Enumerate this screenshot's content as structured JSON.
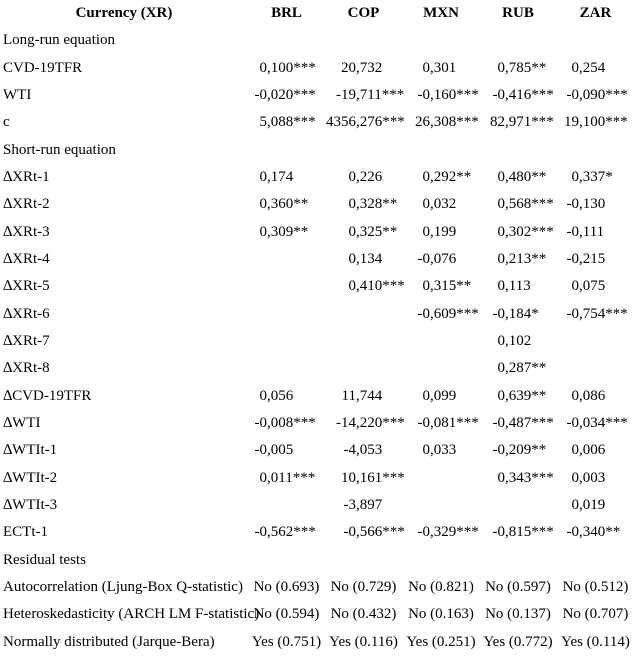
{
  "colors": {
    "text": "#000000",
    "background": "#ffffff"
  },
  "table": {
    "header": {
      "label": "Currency (XR)",
      "columns": [
        "BRL",
        "COP",
        "MXN",
        "RUB",
        "ZAR"
      ]
    },
    "rows": [
      {
        "kind": "section",
        "label": "Long-run equation"
      },
      {
        "kind": "coef",
        "label": "CVD-19TFR",
        "values": [
          "0,100***",
          "20,732",
          "0,301",
          "0,785**",
          "0,254"
        ]
      },
      {
        "kind": "coef",
        "label": "WTI",
        "values": [
          "-0,020***",
          "-19,711***",
          "-0,160***",
          "-0,416***",
          "-0,090***"
        ]
      },
      {
        "kind": "coef",
        "label": "c",
        "values": [
          "5,088***",
          "4356,276***",
          "26,308***",
          "82,971***",
          "19,100***"
        ]
      },
      {
        "kind": "section",
        "label": "Short-run equation"
      },
      {
        "kind": "coef",
        "label": "∆XRt-1",
        "values": [
          "0,174",
          "0,226",
          "0,292**",
          "0,480**",
          "0,337*"
        ]
      },
      {
        "kind": "coef",
        "label": "∆XRt-2",
        "values": [
          "0,360**",
          "0,328**",
          "0,032",
          "0,568***",
          "-0,130"
        ]
      },
      {
        "kind": "coef",
        "label": "∆XRt-3",
        "values": [
          "0,309**",
          "0,325**",
          "0,199",
          "0,302***",
          "-0,111"
        ]
      },
      {
        "kind": "coef",
        "label": "∆XRt-4",
        "values": [
          "",
          "0,134",
          "-0,076",
          "0,213**",
          "-0,215"
        ]
      },
      {
        "kind": "coef",
        "label": "∆XRt-5",
        "values": [
          "",
          "0,410***",
          "0,315**",
          "0,113",
          "0,075"
        ]
      },
      {
        "kind": "coef",
        "label": "∆XRt-6",
        "values": [
          "",
          "",
          "-0,609***",
          "-0,184*",
          "-0,754***"
        ]
      },
      {
        "kind": "coef",
        "label": "∆XRt-7",
        "values": [
          "",
          "",
          "",
          "0,102",
          ""
        ]
      },
      {
        "kind": "coef",
        "label": "∆XRt-8",
        "values": [
          "",
          "",
          "",
          "0,287**",
          ""
        ]
      },
      {
        "kind": "coef",
        "label": "∆CVD-19TFR",
        "values": [
          "0,056",
          "11,744",
          "0,099",
          "0,639**",
          "0,086"
        ]
      },
      {
        "kind": "coef",
        "label": "∆WTI",
        "values": [
          "-0,008***",
          "-14,220***",
          "-0,081***",
          "-0,487***",
          "-0,034***"
        ]
      },
      {
        "kind": "coef",
        "label": "∆WTIt-1",
        "values": [
          "-0,005",
          "-4,053",
          "0,033",
          "-0,209**",
          "0,006"
        ]
      },
      {
        "kind": "coef",
        "label": "∆WTIt-2",
        "values": [
          "0,011***",
          "10,161***",
          "",
          "0,343***",
          "0,003"
        ]
      },
      {
        "kind": "coef",
        "label": "∆WTIt-3",
        "values": [
          "",
          "-3,897",
          "",
          "",
          "0,019"
        ]
      },
      {
        "kind": "coef",
        "label": "ECTt-1",
        "values": [
          "-0,562***",
          "-0,566***",
          "-0,329***",
          "-0,815***",
          "-0,340**"
        ]
      },
      {
        "kind": "section",
        "label": "Residual tests"
      },
      {
        "kind": "test",
        "label": "Autocorrelation (Ljung-Box Q-statistic)",
        "values": [
          "No (0.693)",
          "No (0.729)",
          "No (0.821)",
          "No (0.597)",
          "No (0.512)"
        ]
      },
      {
        "kind": "test",
        "label": "Heteroskedasticity (ARCH LM F-statistic)",
        "values": [
          "No (0.594)",
          "No (0.432)",
          "No (0.163)",
          "No (0.137)",
          "No (0.707)"
        ]
      },
      {
        "kind": "test",
        "label": "Normally distributed (Jarque-Bera)",
        "values": [
          "Yes (0.751)",
          "Yes (0.116)",
          "Yes (0.251)",
          "Yes (0.772)",
          "Yes (0.114)"
        ]
      }
    ]
  }
}
